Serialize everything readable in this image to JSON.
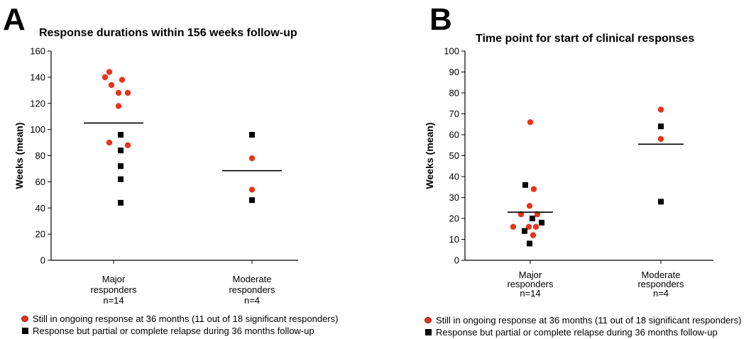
{
  "panels": [
    {
      "letter": "A",
      "legend": {
        "red": "Still in ongoing response at 36 months (11 out of 18 significant responders)",
        "black": "Response but partial or complete relapse during 36 months follow-up"
      }
    },
    {
      "letter": "B",
      "legend": {
        "red": "Still in ongoing response at 36 months (11 out of 18 significant responders)",
        "black": "Response but partial or complete relapse during 36 months follow-up"
      }
    }
  ],
  "colors": {
    "ongoing": "#e8341c",
    "relapse": "#000000"
  },
  "chart_data": [
    {
      "type": "scatter",
      "title": "Response durations within 156 weeks follow-up",
      "ylabel": "Weeks (mean)",
      "ylim": [
        0,
        160
      ],
      "yticks": [
        0,
        20,
        40,
        60,
        80,
        100,
        120,
        140,
        160
      ],
      "categories": [
        [
          "Major",
          "responders",
          "n=14"
        ],
        [
          "Moderate",
          "responders",
          "n=4"
        ]
      ],
      "groups": [
        {
          "mean": 105,
          "ongoing": [
            144,
            140,
            138,
            134,
            128,
            128,
            118,
            90,
            88
          ],
          "relapse": [
            96,
            84,
            72,
            62,
            44
          ]
        },
        {
          "mean": 68.5,
          "ongoing": [
            78,
            54
          ],
          "relapse": [
            96,
            46
          ]
        }
      ]
    },
    {
      "type": "scatter",
      "title": "Time point for start of clinical responses",
      "ylabel": "Weeks (mean)",
      "ylim": [
        0,
        100
      ],
      "yticks": [
        0,
        10,
        20,
        30,
        40,
        50,
        60,
        70,
        80,
        90,
        100
      ],
      "categories": [
        [
          "Major",
          "responders",
          "n=14"
        ],
        [
          "Moderate",
          "responders",
          "n=4"
        ]
      ],
      "groups": [
        {
          "mean": 23,
          "ongoing": [
            66,
            34,
            26,
            22,
            22,
            16,
            16,
            16,
            12
          ],
          "relapse": [
            36,
            20,
            18,
            14,
            8
          ]
        },
        {
          "mean": 55.5,
          "ongoing": [
            72,
            58
          ],
          "relapse": [
            64,
            28
          ]
        }
      ]
    }
  ]
}
